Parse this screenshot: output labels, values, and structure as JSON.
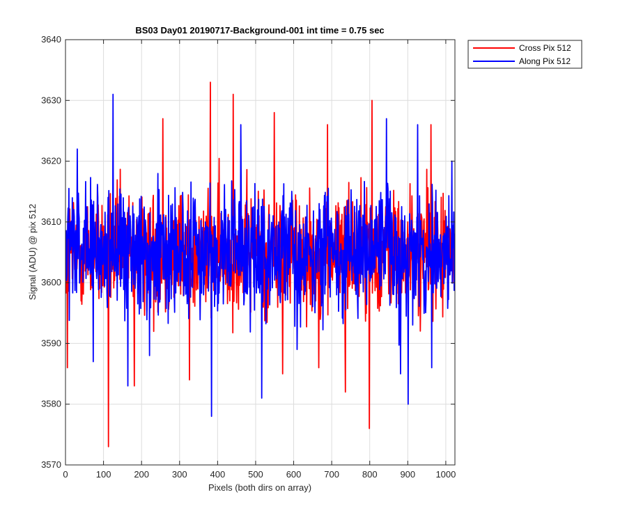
{
  "chart_data": {
    "type": "line",
    "title": "BS03 Day01 20190717-Background-001 int time = 0.75 sec",
    "xlabel": "Pixels (both dirs on array)",
    "ylabel": "Signal (ADU) @ pix 512",
    "xlim": [
      0,
      1024
    ],
    "ylim": [
      3570,
      3640
    ],
    "xticks": [
      "0",
      "100",
      "200",
      "300",
      "400",
      "500",
      "600",
      "700",
      "800",
      "900",
      "1000"
    ],
    "yticks": [
      "3570",
      "3580",
      "3590",
      "3600",
      "3610",
      "3620",
      "3630",
      "3640"
    ],
    "grid": true,
    "legend_position": "outside-top-right",
    "noise_mean": 3605,
    "series": [
      {
        "name": "Cross Pix 512",
        "color": "#ff0000",
        "peaks": [
          {
            "x": 112,
            "y": 3573
          },
          {
            "x": 380,
            "y": 3633
          },
          {
            "x": 440,
            "y": 3631
          },
          {
            "x": 548,
            "y": 3628
          },
          {
            "x": 255,
            "y": 3627
          },
          {
            "x": 805,
            "y": 3630
          },
          {
            "x": 798,
            "y": 3576
          },
          {
            "x": 4,
            "y": 3586
          },
          {
            "x": 325,
            "y": 3584
          },
          {
            "x": 735,
            "y": 3582
          },
          {
            "x": 180,
            "y": 3583
          },
          {
            "x": 570,
            "y": 3585
          },
          {
            "x": 665,
            "y": 3586
          },
          {
            "x": 688,
            "y": 3626
          },
          {
            "x": 960,
            "y": 3626
          }
        ]
      },
      {
        "name": "Along Pix 512",
        "color": "#0000ff",
        "peaks": [
          {
            "x": 124,
            "y": 3631
          },
          {
            "x": 383,
            "y": 3578
          },
          {
            "x": 30,
            "y": 3622
          },
          {
            "x": 460,
            "y": 3626
          },
          {
            "x": 843,
            "y": 3627
          },
          {
            "x": 925,
            "y": 3626
          },
          {
            "x": 515,
            "y": 3581
          },
          {
            "x": 163,
            "y": 3583
          },
          {
            "x": 880,
            "y": 3585
          },
          {
            "x": 900,
            "y": 3580
          },
          {
            "x": 962,
            "y": 3586
          },
          {
            "x": 72,
            "y": 3587
          },
          {
            "x": 220,
            "y": 3588
          },
          {
            "x": 608,
            "y": 3589
          },
          {
            "x": 1015,
            "y": 3620
          }
        ]
      }
    ]
  }
}
